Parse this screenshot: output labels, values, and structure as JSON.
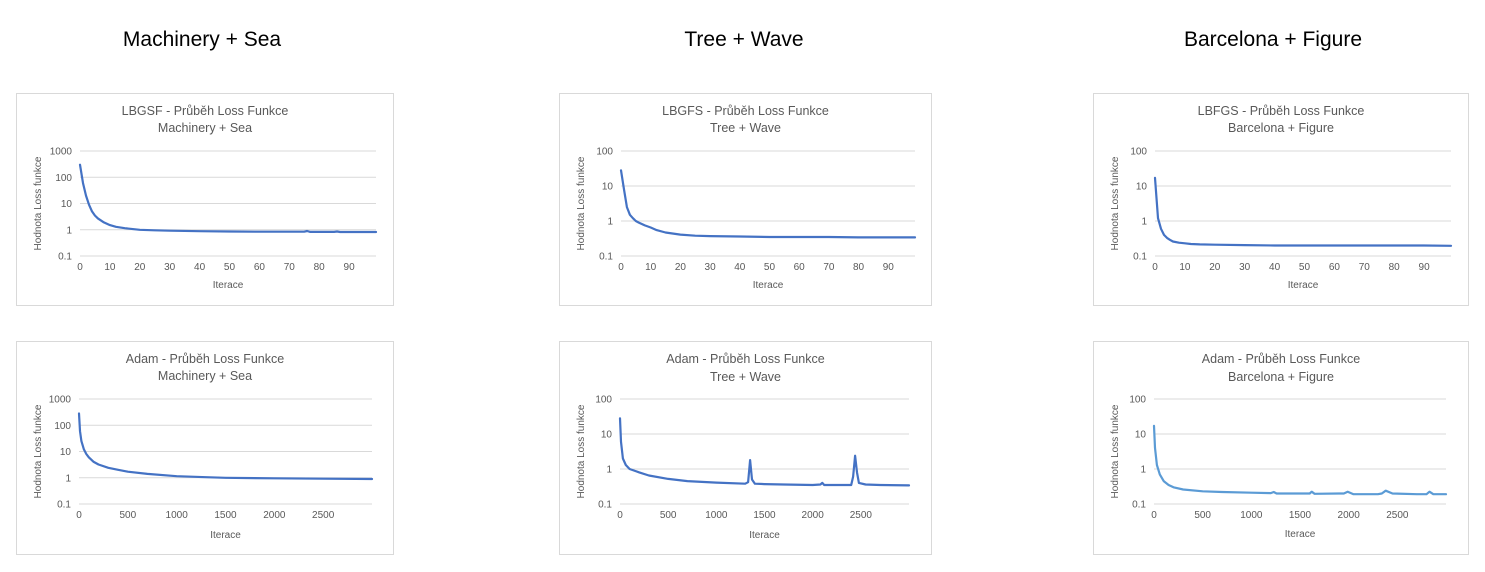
{
  "columns": [
    "Machinery + Sea",
    "Tree + Wave",
    "Barcelona + Figure"
  ],
  "colors": {
    "series_dark": "#4472c4",
    "series_light": "#5b9bd5",
    "grid": "#d9d9d9",
    "text": "#595959"
  },
  "chart_data": [
    {
      "type": "line",
      "title": [
        "LBGSF - Průběh Loss Funkce",
        "Machinery + Sea"
      ],
      "xlabel": "Iterace",
      "ylabel": "Hodnota Loss funkce",
      "yscale": "log",
      "ylim": [
        0.1,
        1000
      ],
      "xlim": [
        0,
        99
      ],
      "y_ticks": [
        "0.1",
        "1",
        "10",
        "100",
        "1000"
      ],
      "x_ticks": [
        0,
        10,
        20,
        30,
        40,
        50,
        60,
        70,
        80,
        90
      ],
      "color": "#4472c4",
      "series": [
        {
          "x": [
            0,
            1,
            2,
            3,
            4,
            5,
            6,
            8,
            10,
            12,
            15,
            20,
            25,
            30,
            40,
            50,
            60,
            70,
            75,
            76,
            77,
            80,
            85,
            86,
            87,
            90,
            95,
            99
          ],
          "values": [
            300,
            60,
            20,
            9,
            5,
            3.5,
            2.7,
            1.9,
            1.5,
            1.3,
            1.15,
            1.0,
            0.95,
            0.92,
            0.88,
            0.86,
            0.84,
            0.84,
            0.84,
            0.9,
            0.83,
            0.83,
            0.83,
            0.86,
            0.82,
            0.82,
            0.82,
            0.82
          ]
        }
      ]
    },
    {
      "type": "line",
      "title": [
        "LBGFS - Průběh Loss Funkce",
        "Tree + Wave"
      ],
      "xlabel": "Iterace",
      "ylabel": "Hodnota Loss funkce",
      "yscale": "log",
      "ylim": [
        0.1,
        100
      ],
      "xlim": [
        0,
        99
      ],
      "y_ticks": [
        "0.1",
        "1",
        "10",
        "100"
      ],
      "x_ticks": [
        0,
        10,
        20,
        30,
        40,
        50,
        60,
        70,
        80,
        90
      ],
      "color": "#4472c4",
      "series": [
        {
          "x": [
            0,
            1,
            2,
            3,
            4,
            5,
            6,
            8,
            10,
            12,
            15,
            20,
            25,
            30,
            40,
            50,
            60,
            70,
            80,
            90,
            99
          ],
          "values": [
            28,
            8,
            2.5,
            1.5,
            1.2,
            1.0,
            0.9,
            0.75,
            0.65,
            0.55,
            0.47,
            0.41,
            0.38,
            0.37,
            0.36,
            0.35,
            0.35,
            0.35,
            0.34,
            0.34,
            0.34
          ]
        }
      ]
    },
    {
      "type": "line",
      "title": [
        "LBFGS - Průběh Loss Funkce",
        "Barcelona + Figure"
      ],
      "xlabel": "Iterace",
      "ylabel": "Hodnota Loss funkce",
      "yscale": "log",
      "ylim": [
        0.1,
        100
      ],
      "xlim": [
        0,
        99
      ],
      "y_ticks": [
        "0.1",
        "1",
        "10",
        "100"
      ],
      "x_ticks": [
        0,
        10,
        20,
        30,
        40,
        50,
        60,
        70,
        80,
        90
      ],
      "color": "#4472c4",
      "series": [
        {
          "x": [
            0,
            1,
            2,
            3,
            4,
            5,
            6,
            8,
            10,
            12,
            15,
            20,
            30,
            40,
            50,
            60,
            70,
            80,
            90,
            99
          ],
          "values": [
            17,
            1.2,
            0.6,
            0.4,
            0.33,
            0.29,
            0.26,
            0.24,
            0.23,
            0.22,
            0.215,
            0.21,
            0.205,
            0.2,
            0.2,
            0.2,
            0.2,
            0.2,
            0.2,
            0.195
          ]
        }
      ]
    },
    {
      "type": "line",
      "title": [
        "Adam - Průběh Loss Funkce",
        "Machinery + Sea"
      ],
      "xlabel": "Iterace",
      "ylabel": "Hodnota Loss funkce",
      "yscale": "log",
      "ylim": [
        0.1,
        1000
      ],
      "xlim": [
        0,
        3000
      ],
      "y_ticks": [
        "0.1",
        "1",
        "10",
        "100",
        "1000"
      ],
      "x_ticks": [
        0,
        500,
        1000,
        1500,
        2000,
        2500
      ],
      "color": "#4472c4",
      "series": [
        {
          "x": [
            0,
            10,
            25,
            50,
            75,
            100,
            150,
            200,
            300,
            400,
            500,
            700,
            1000,
            1300,
            1500,
            2000,
            2500,
            3000
          ],
          "values": [
            280,
            60,
            25,
            12,
            8,
            6,
            4,
            3.2,
            2.4,
            2.0,
            1.7,
            1.4,
            1.15,
            1.05,
            1.0,
            0.95,
            0.92,
            0.9
          ]
        }
      ]
    },
    {
      "type": "line",
      "title": [
        "Adam - Průběh Loss Funkce",
        "Tree + Wave"
      ],
      "xlabel": "Iterace",
      "ylabel": "Hodnota Loss funkce",
      "yscale": "log",
      "ylim": [
        0.1,
        100
      ],
      "xlim": [
        0,
        3000
      ],
      "y_ticks": [
        "0.1",
        "1",
        "10",
        "100"
      ],
      "x_ticks": [
        0,
        500,
        1000,
        1500,
        2000,
        2500
      ],
      "color": "#4472c4",
      "series": [
        {
          "x": [
            0,
            10,
            30,
            60,
            100,
            200,
            300,
            500,
            700,
            1000,
            1300,
            1330,
            1350,
            1370,
            1400,
            1500,
            1700,
            2000,
            2080,
            2100,
            2120,
            2300,
            2400,
            2420,
            2440,
            2460,
            2480,
            2550,
            2700,
            3000
          ],
          "values": [
            28,
            6,
            2,
            1.3,
            1.0,
            0.8,
            0.65,
            0.52,
            0.45,
            0.41,
            0.38,
            0.42,
            1.8,
            0.5,
            0.38,
            0.37,
            0.36,
            0.35,
            0.36,
            0.4,
            0.35,
            0.35,
            0.35,
            0.6,
            2.4,
            0.8,
            0.4,
            0.36,
            0.35,
            0.34
          ]
        }
      ]
    },
    {
      "type": "line",
      "title": [
        "Adam - Průběh Loss Funkce",
        "Barcelona + Figure"
      ],
      "xlabel": "Iterace",
      "ylabel": "Hodnota Loss funkce",
      "yscale": "log",
      "ylim": [
        0.1,
        100
      ],
      "xlim": [
        0,
        3000
      ],
      "y_ticks": [
        "0.1",
        "1",
        "10",
        "100"
      ],
      "x_ticks": [
        0,
        500,
        1000,
        1500,
        2000,
        2500
      ],
      "color": "#5b9bd5",
      "series": [
        {
          "x": [
            0,
            10,
            30,
            60,
            100,
            150,
            200,
            300,
            500,
            700,
            1000,
            1200,
            1230,
            1260,
            1500,
            1600,
            1620,
            1650,
            1900,
            1950,
            1990,
            2050,
            2300,
            2340,
            2380,
            2450,
            2700,
            2800,
            2830,
            2870,
            3000
          ],
          "values": [
            17,
            4,
            1.3,
            0.7,
            0.45,
            0.35,
            0.3,
            0.26,
            0.23,
            0.22,
            0.21,
            0.205,
            0.22,
            0.2,
            0.2,
            0.2,
            0.225,
            0.195,
            0.2,
            0.2,
            0.225,
            0.19,
            0.19,
            0.2,
            0.24,
            0.2,
            0.19,
            0.19,
            0.225,
            0.19,
            0.19
          ]
        }
      ]
    }
  ]
}
